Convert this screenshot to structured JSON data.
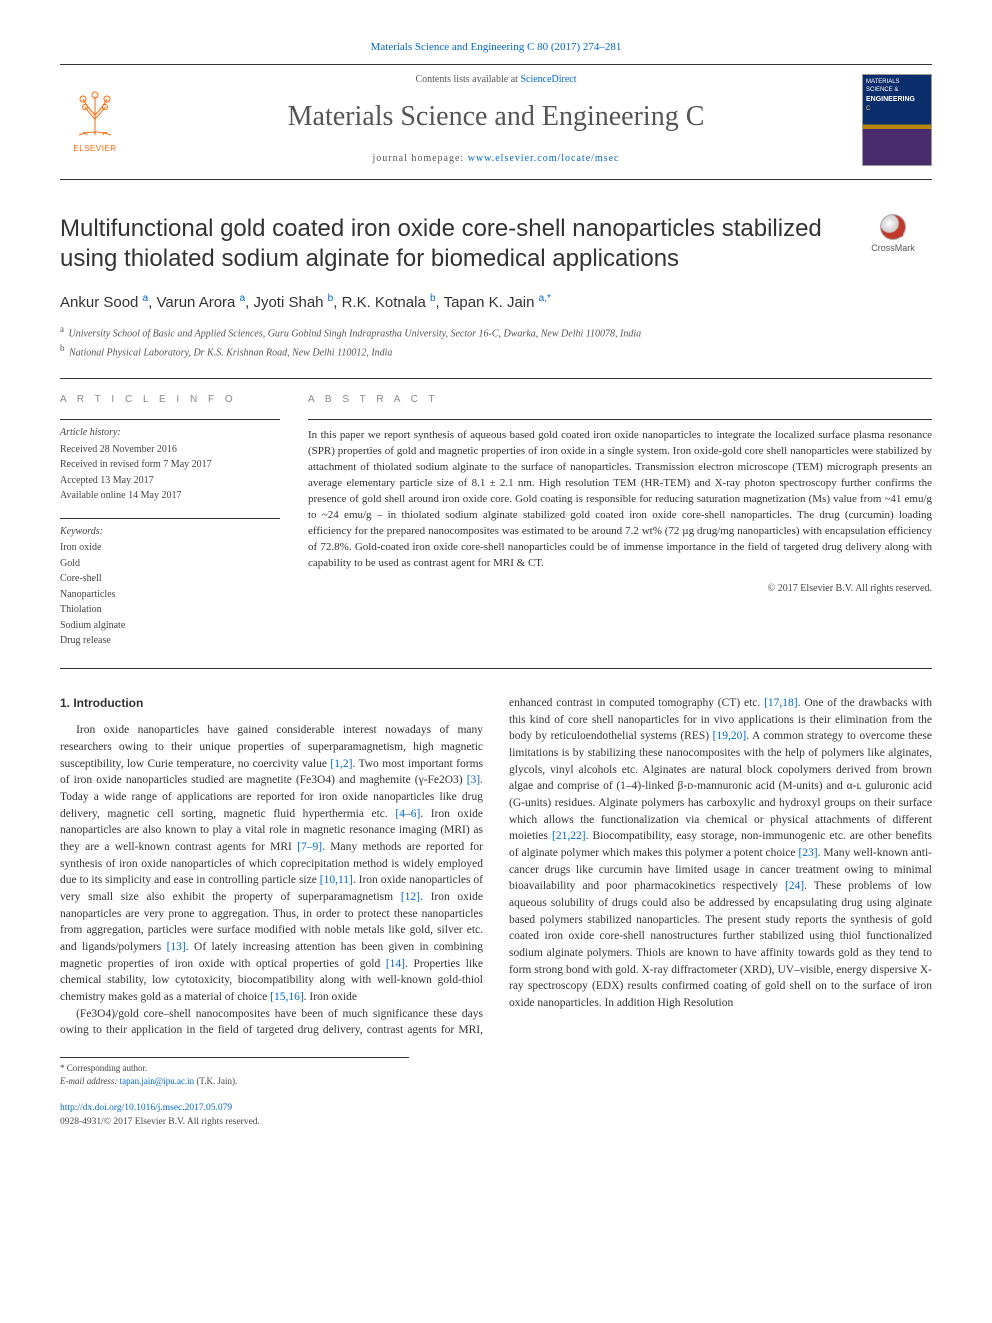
{
  "meta": {
    "journal_reference": "Materials Science and Engineering C 80 (2017) 274–281",
    "contents_line_prefix": "Contents lists available at ",
    "contents_line_link": "ScienceDirect",
    "journal_title": "Materials Science and Engineering C",
    "homepage_prefix": "journal homepage: ",
    "homepage_url": "www.elsevier.com/locate/msec",
    "elsevier_wordmark": "ELSEVIER",
    "cover_line1": "MATERIALS",
    "cover_line2": "SCIENCE &",
    "cover_line3": "ENGINEERING",
    "cover_sub": "C"
  },
  "title": "Multifunctional gold coated iron oxide core-shell nanoparticles stabilized using thiolated sodium alginate for biomedical applications",
  "crossmark_label": "CrossMark",
  "authors_html": "Ankur Sood <sup>a</sup>, Varun Arora <sup>a</sup>, Jyoti Shah <sup>b</sup>, R.K. Kotnala <sup>b</sup>, Tapan K. Jain <sup>a,*</sup>",
  "affiliations": [
    {
      "label": "a",
      "text": "University School of Basic and Applied Sciences, Guru Gobind Singh Indraprastha University, Sector 16-C, Dwarka, New Delhi 110078, India"
    },
    {
      "label": "b",
      "text": "National Physical Laboratory, Dr K.S. Krishnan Road, New Delhi 110012, India"
    }
  ],
  "article_info": {
    "heading": "A R T I C L E   I N F O",
    "history_label": "Article history:",
    "history": [
      "Received 28 November 2016",
      "Received in revised form 7 May 2017",
      "Accepted 13 May 2017",
      "Available online 14 May 2017"
    ],
    "keywords_label": "Keywords:",
    "keywords": [
      "Iron oxide",
      "Gold",
      "Core-shell",
      "Nanoparticles",
      "Thiolation",
      "Sodium alginate",
      "Drug release"
    ]
  },
  "abstract": {
    "heading": "A B S T R A C T",
    "text": "In this paper we report synthesis of aqueous based gold coated iron oxide nanoparticles to integrate the localized surface plasma resonance (SPR) properties of gold and magnetic properties of iron oxide in a single system. Iron oxide-gold core shell nanoparticles were stabilized by attachment of thiolated sodium alginate to the surface of nanoparticles. Transmission electron microscope (TEM) micrograph presents an average elementary particle size of 8.1 ± 2.1 nm. High resolution TEM (HR-TEM) and X-ray photon spectroscopy further confirms the presence of gold shell around iron oxide core. Gold coating is responsible for reducing saturation magnetization (Ms) value from ~41 emu/g to ~24 emu/g – in thiolated sodium alginate stabilized gold coated iron oxide core-shell nanoparticles. The drug (curcumin) loading efficiency for the prepared nanocomposites was estimated to be around 7.2 wt% (72 µg drug/mg nanoparticles) with encapsulation efficiency of 72.8%. Gold-coated iron oxide core-shell nanoparticles could be of immense importance in the field of targeted drug delivery along with capability to be used as contrast agent for MRI & CT.",
    "copyright": "© 2017 Elsevier B.V. All rights reserved."
  },
  "body": {
    "section_heading": "1. Introduction",
    "col1": "Iron oxide nanoparticles have gained considerable interest nowadays of many researchers owing to their unique properties of superparamagnetism, high magnetic susceptibility, low Curie temperature, no coercivity value [1,2]. Two most important forms of iron oxide nanoparticles studied are magnetite (Fe3O4) and maghemite (γ-Fe2O3) [3]. Today a wide range of applications are reported for iron oxide nanoparticles like drug delivery, magnetic cell sorting, magnetic fluid hyperthermia etc. [4–6]. Iron oxide nanoparticles are also known to play a vital role in magnetic resonance imaging (MRI) as they are a well-known contrast agents for MRI [7–9]. Many methods are reported for synthesis of iron oxide nanoparticles of which coprecipitation method is widely employed due to its simplicity and ease in controlling particle size [10,11]. Iron oxide nanoparticles of very small size also exhibit the property of superparamagnetism [12]. Iron oxide nanoparticles are very prone to aggregation. Thus, in order to protect these nanoparticles from aggregation, particles were surface modified with noble metals like gold, silver etc. and ligands/polymers [13]. Of lately increasing attention has been given in combining magnetic properties of iron oxide with optical properties of gold [14]. Properties like chemical stability, low cytotoxicity, biocompatibility along with well-known gold-thiol chemistry makes gold as a material of choice [15,16]. Iron oxide",
    "col2": "(Fe3O4)/gold core–shell nanocomposites have been of much significance these days owing to their application in the field of targeted drug delivery, contrast agents for MRI, enhanced contrast in computed tomography (CT) etc. [17,18]. One of the drawbacks with this kind of core shell nanoparticles for in vivo applications is their elimination from the body by reticuloendothelial systems (RES) [19,20]. A common strategy to overcome these limitations is by stabilizing these nanocomposites with the help of polymers like alginates, glycols, vinyl alcohols etc. Alginates are natural block copolymers derived from brown algae and comprise of (1–4)-linked β-ᴅ-mannuronic acid (M-units) and α-ʟ guluronic acid (G-units) residues. Alginate polymers has carboxylic and hydroxyl groups on their surface which allows the functionalization via chemical or physical attachments of different moieties [21,22]. Biocompatibility, easy storage, non-immunogenic etc. are other benefits of alginate polymer which makes this polymer a potent choice [23]. Many well-known anti-cancer drugs like curcumin have limited usage in cancer treatment owing to minimal bioavailability and poor pharmacokinetics respectively [24]. These problems of low aqueous solubility of drugs could also be addressed by encapsulating drug using alginate based polymers stabilized nanoparticles. The present study reports the synthesis of gold coated iron oxide core-shell nanostructures further stabilized using thiol functionalized sodium alginate polymers. Thiols are known to have affinity towards gold as they tend to form strong bond with gold. X-ray diffractometer (XRD), UV–visible, energy dispersive X-ray spectroscopy (EDX) results confirmed coating of gold shell on to the surface of iron oxide nanoparticles. In addition High Resolution"
  },
  "correspondence": {
    "label": "* Corresponding author.",
    "email_label": "E-mail address:",
    "email": "tapan.jain@ipu.ac.in",
    "name_paren": "(T.K. Jain)."
  },
  "footer": {
    "doi": "http://dx.doi.org/10.1016/j.msec.2017.05.079",
    "issn_line": "0928-4931/© 2017 Elsevier B.V. All rights reserved."
  },
  "accent": "#0066cc"
}
